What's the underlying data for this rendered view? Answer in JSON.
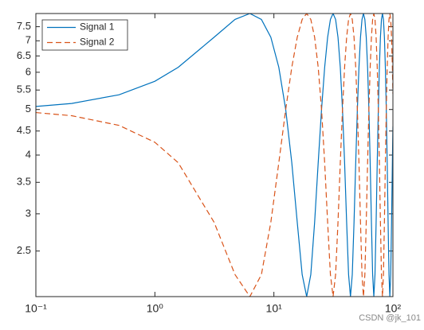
{
  "chart_data": {
    "type": "line",
    "xscale": "log",
    "yscale": "log",
    "x": [
      0.1,
      0.2,
      0.5,
      1,
      1.571,
      3.142,
      4.712,
      6.283,
      7.854,
      9.425,
      10.996,
      12.566,
      14.137,
      15.708,
      17.279,
      18.85,
      20.42,
      21.991,
      23.562,
      25.133,
      26.704,
      28.274,
      29.845,
      31.416,
      32.987,
      34.558,
      36.128,
      37.699,
      39.27,
      40.841,
      42.412,
      43.982,
      45.553,
      47.124,
      48.695,
      50.265,
      51.836,
      53.407,
      54.978,
      56.549,
      58.119,
      59.69,
      61.261,
      62.832,
      64.403,
      65.973,
      67.544,
      69.115,
      70.686,
      72.257,
      73.827,
      75.398,
      76.969,
      78.54,
      80.111,
      81.681,
      83.252,
      84.823,
      86.394,
      87.965,
      89.535,
      91.106,
      92.677,
      94.248,
      95.819,
      97.389,
      98.96,
      100
    ],
    "series": [
      {
        "name": "Signal 1",
        "color": "#0072bd",
        "dash": "solid",
        "values": [
          5.075,
          5.15,
          5.374,
          5.742,
          6.148,
          7.121,
          7.772,
          8,
          7.772,
          7.121,
          6.148,
          5,
          3.852,
          2.879,
          2.228,
          2,
          2.228,
          2.879,
          3.852,
          5,
          6.148,
          7.121,
          7.772,
          8,
          7.772,
          7.121,
          6.148,
          5,
          3.852,
          2.879,
          2.228,
          2,
          2.228,
          2.879,
          3.852,
          5,
          6.148,
          7.121,
          7.772,
          8,
          7.772,
          7.121,
          6.148,
          5,
          3.852,
          2.879,
          2.228,
          2,
          2.228,
          2.879,
          3.852,
          5,
          6.148,
          7.121,
          7.772,
          8,
          7.772,
          7.121,
          6.148,
          5,
          3.852,
          2.879,
          2.228,
          2,
          2.228,
          2.879,
          3.852,
          4.603
        ]
      },
      {
        "name": "Signal 2",
        "color": "#d95319",
        "dash": "dashed",
        "values": [
          4.925,
          4.85,
          4.626,
          4.258,
          3.852,
          2.879,
          2.228,
          2,
          2.228,
          2.879,
          3.852,
          5,
          6.148,
          7.121,
          7.772,
          8,
          7.772,
          7.121,
          6.148,
          5,
          3.852,
          2.879,
          2.228,
          2,
          2.228,
          2.879,
          3.852,
          5,
          6.148,
          7.121,
          7.772,
          8,
          7.772,
          7.121,
          6.148,
          5,
          3.852,
          2.879,
          2.228,
          2,
          2.228,
          2.879,
          3.852,
          5,
          6.148,
          7.121,
          7.772,
          8,
          7.772,
          7.121,
          6.148,
          5,
          3.852,
          2.879,
          2.228,
          2,
          2.228,
          2.879,
          3.852,
          5,
          6.148,
          7.121,
          7.772,
          8,
          7.772,
          7.121,
          6.148,
          5.397
        ]
      }
    ],
    "xlim": [
      0.1,
      100
    ],
    "xticks": [
      {
        "value": 0.1,
        "label": "10⁻¹"
      },
      {
        "value": 1,
        "label": "10⁰"
      },
      {
        "value": 10,
        "label": "10¹"
      },
      {
        "value": 100,
        "label": "10²"
      }
    ],
    "ylim": [
      2,
      8
    ],
    "yticks": [
      2.5,
      3,
      3.5,
      4,
      4.5,
      5,
      5.5,
      6,
      6.5,
      7,
      7.5
    ],
    "legend": "upper left",
    "watermark": "CSDN @jk_101"
  }
}
